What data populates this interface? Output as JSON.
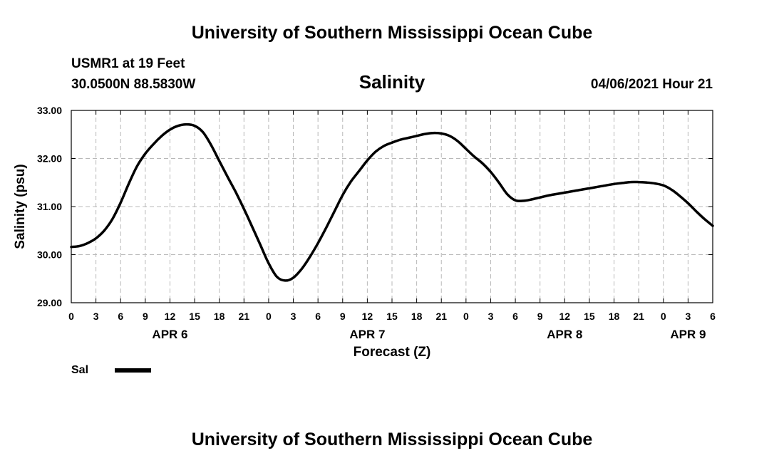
{
  "header": {
    "title": "University of Southern Mississippi Ocean Cube",
    "station": "USMR1 at 19 Feet",
    "location": "30.0500N  88.5830W",
    "chart_name": "Salinity",
    "timestamp": "04/06/2021 Hour 21"
  },
  "footer": {
    "title": "University of Southern Mississippi Ocean Cube"
  },
  "legend": {
    "label": "Sal"
  },
  "chart_data": {
    "type": "line",
    "title": "Salinity",
    "xlabel": "Forecast (Z)",
    "ylabel": "Salinity (psu)",
    "xlim": [
      0,
      78
    ],
    "ylim": [
      29.0,
      33.0
    ],
    "x_unit": "hours from APR 6 00Z",
    "y_ticks": [
      29.0,
      30.0,
      31.0,
      32.0,
      33.0
    ],
    "y_tick_labels": [
      "29.00",
      "30.00",
      "31.00",
      "32.00",
      "33.00"
    ],
    "x_ticks": [
      0,
      3,
      6,
      9,
      12,
      15,
      18,
      21,
      24,
      27,
      30,
      33,
      36,
      39,
      42,
      45,
      48,
      51,
      54,
      57,
      60,
      63,
      66,
      69,
      72,
      75,
      78
    ],
    "x_tick_labels": [
      "0",
      "3",
      "6",
      "9",
      "12",
      "15",
      "18",
      "21",
      "0",
      "3",
      "6",
      "9",
      "12",
      "15",
      "18",
      "21",
      "0",
      "3",
      "6",
      "9",
      "12",
      "15",
      "18",
      "21",
      "0",
      "3",
      "6"
    ],
    "date_labels": [
      {
        "x": 12,
        "label": "APR 6"
      },
      {
        "x": 36,
        "label": "APR 7"
      },
      {
        "x": 60,
        "label": "APR 8"
      },
      {
        "x": 75,
        "label": "APR 9"
      }
    ],
    "grid": true,
    "series": [
      {
        "name": "Sal",
        "color": "#000000",
        "x": [
          0,
          1,
          2,
          3,
          4,
          5,
          6,
          7,
          8,
          9,
          10,
          11,
          12,
          13,
          14,
          15,
          16,
          17,
          18,
          19,
          20,
          21,
          22,
          23,
          24,
          25,
          26,
          27,
          28,
          29,
          30,
          31,
          32,
          33,
          34,
          35,
          36,
          37,
          38,
          39,
          40,
          41,
          42,
          43,
          44,
          45,
          46,
          47,
          48,
          49,
          50,
          51,
          52,
          53,
          54,
          55,
          56,
          57,
          58,
          59,
          60,
          61,
          62,
          63,
          64,
          65,
          66,
          67,
          68,
          69,
          70,
          71,
          72,
          73,
          74,
          75,
          76,
          77,
          78
        ],
        "values": [
          30.16,
          30.18,
          30.24,
          30.34,
          30.5,
          30.74,
          31.08,
          31.48,
          31.84,
          32.1,
          32.3,
          32.47,
          32.6,
          32.68,
          32.71,
          32.68,
          32.55,
          32.28,
          31.95,
          31.62,
          31.3,
          30.95,
          30.58,
          30.2,
          29.82,
          29.54,
          29.46,
          29.52,
          29.7,
          29.95,
          30.24,
          30.56,
          30.9,
          31.24,
          31.52,
          31.74,
          31.96,
          32.14,
          32.26,
          32.33,
          32.39,
          32.43,
          32.47,
          32.51,
          32.53,
          32.52,
          32.47,
          32.36,
          32.2,
          32.04,
          31.9,
          31.72,
          31.5,
          31.26,
          31.13,
          31.12,
          31.15,
          31.19,
          31.23,
          31.26,
          31.29,
          31.32,
          31.35,
          31.38,
          31.41,
          31.44,
          31.47,
          31.49,
          31.51,
          31.51,
          31.5,
          31.48,
          31.44,
          31.35,
          31.22,
          31.07,
          30.9,
          30.74,
          30.6
        ]
      }
    ]
  }
}
